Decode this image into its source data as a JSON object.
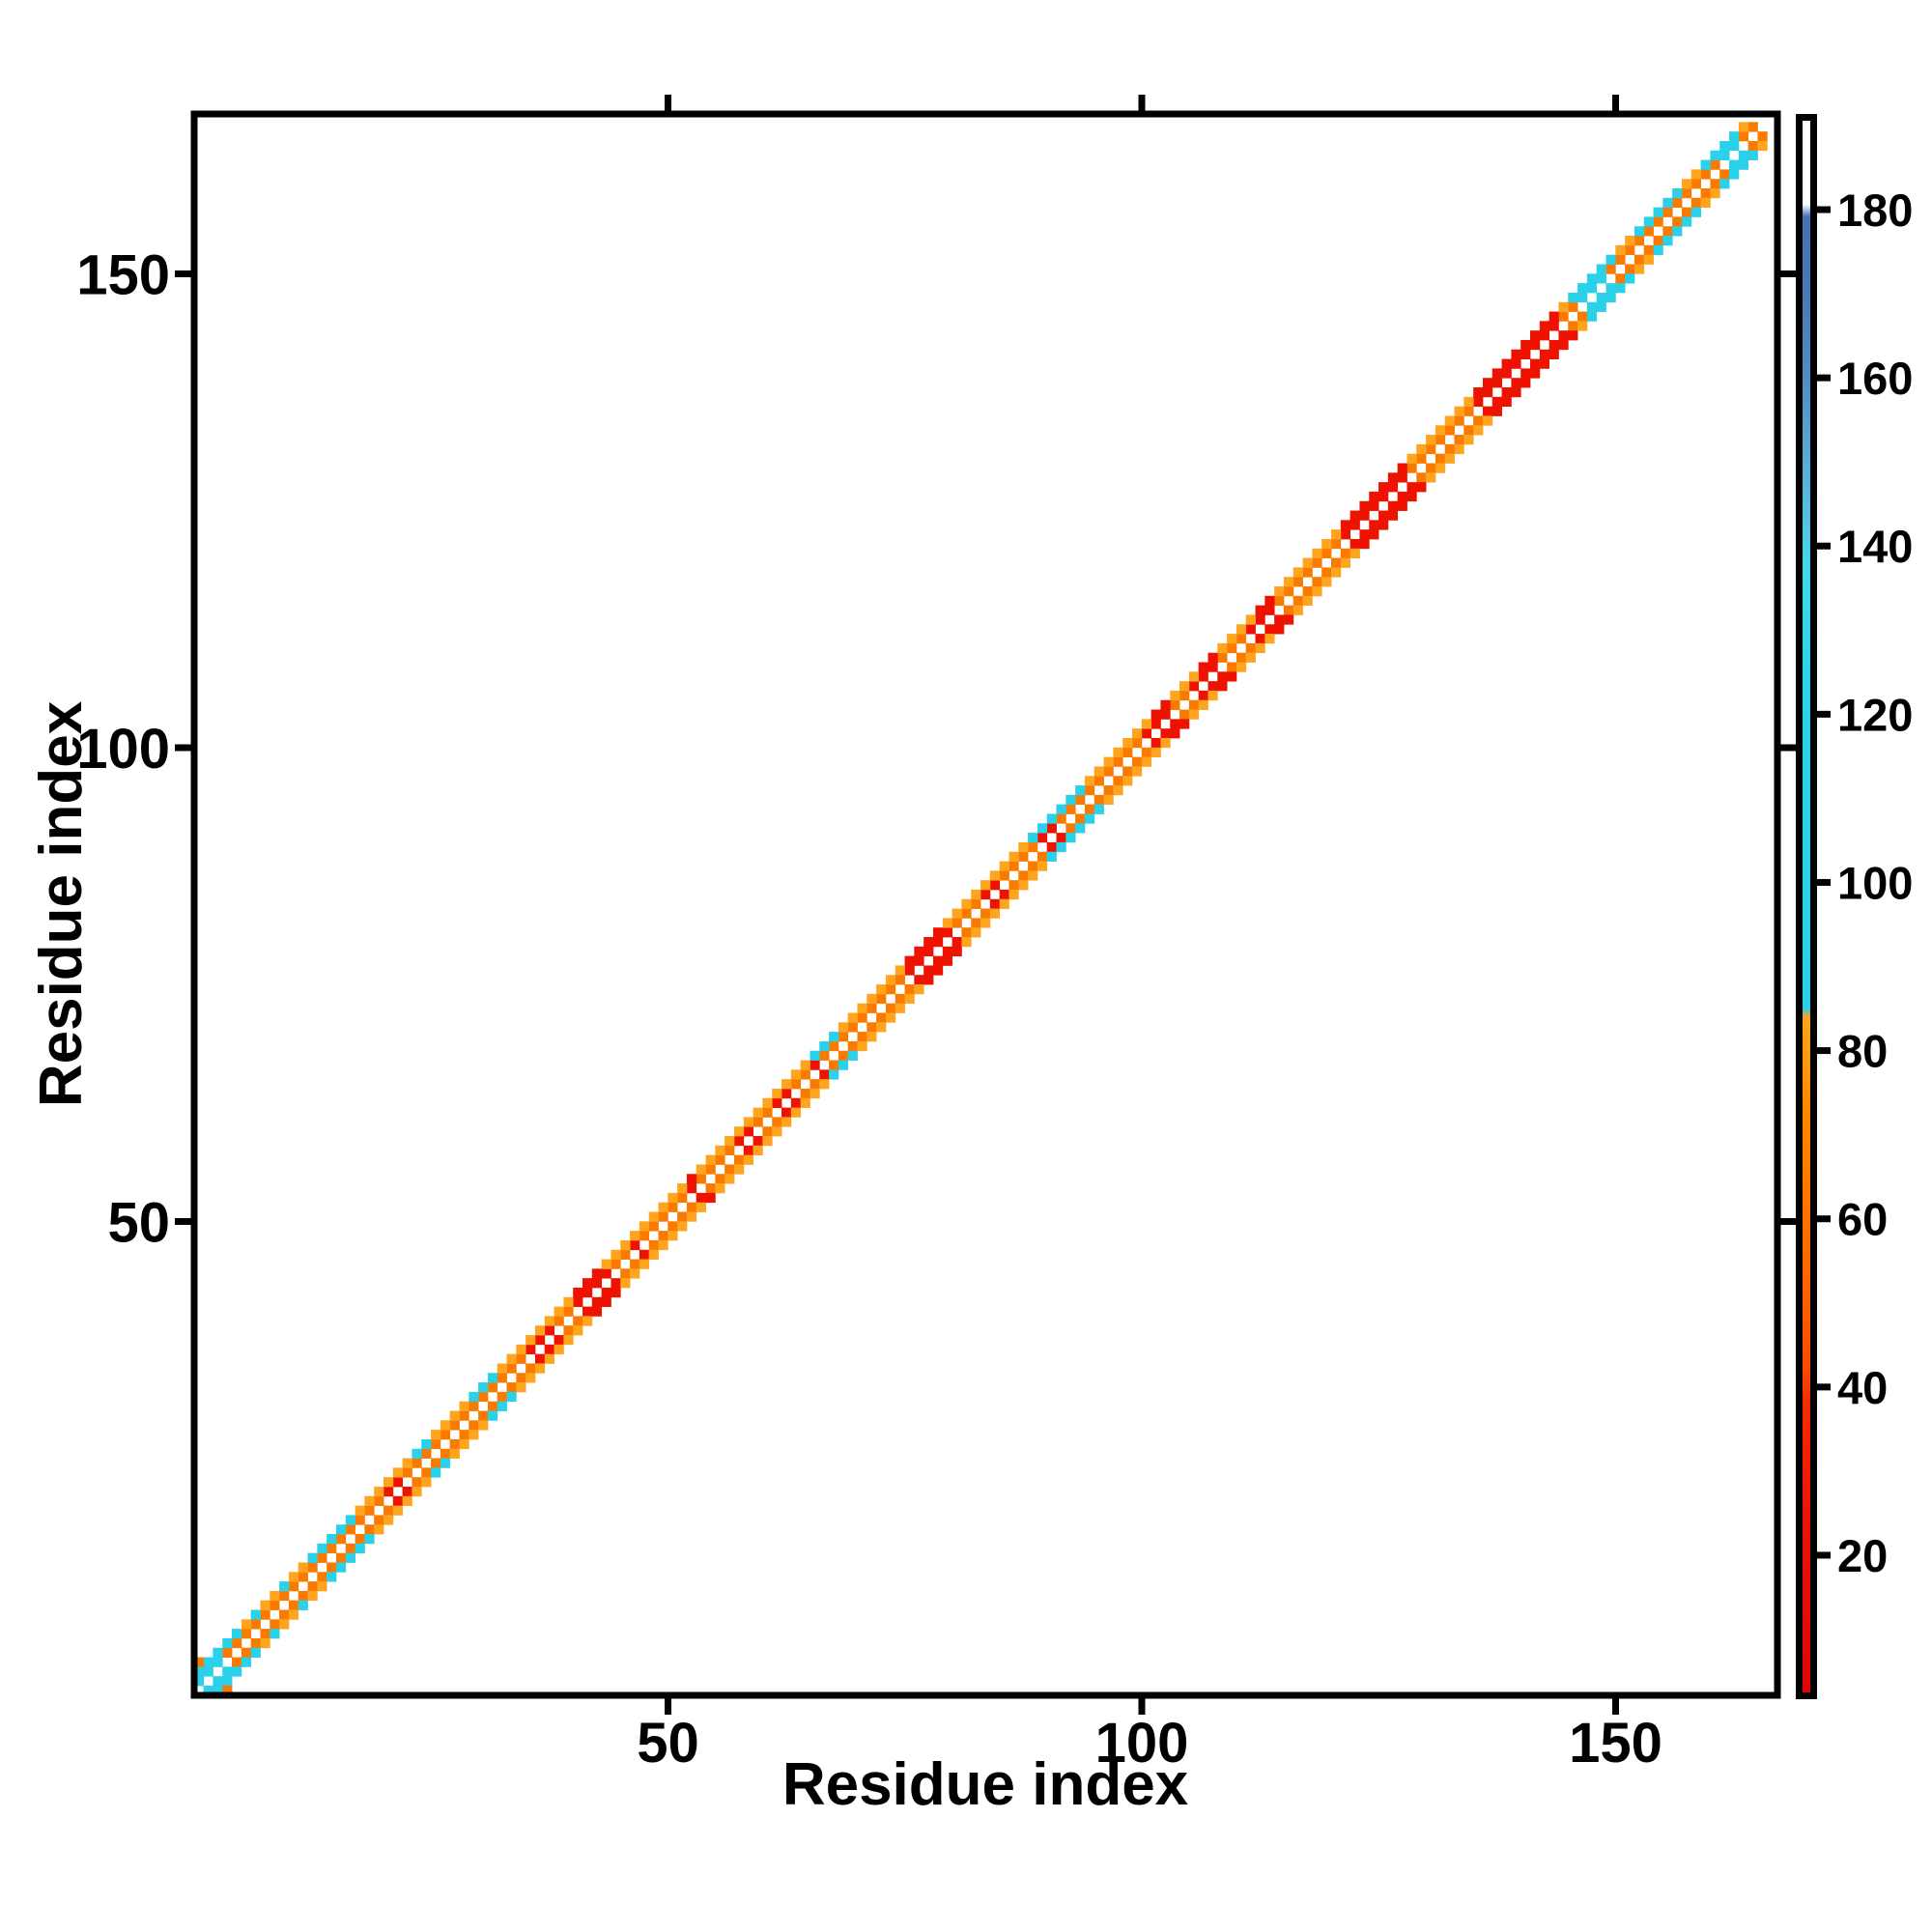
{
  "chart_data": {
    "type": "heatmap",
    "title": "",
    "xlabel": "Residue index",
    "ylabel": "Residue index",
    "x_ticks": [
      50,
      100,
      150
    ],
    "y_ticks": [
      50,
      100,
      150
    ],
    "x_tick_labels": [
      "50",
      "100",
      "150"
    ],
    "y_tick_labels": [
      "50",
      "100",
      "150"
    ],
    "axis_range": [
      0,
      167
    ],
    "n_residues": 166,
    "grid": false,
    "legend_position": "none",
    "background_color": "#ffffff",
    "description": "Protein contact map: colored cells only at sequence offsets 1 and 2 from the main diagonal (symmetric), main diagonal itself is white.",
    "palette": {
      "R": "#ee1300",
      "O": "#fa7a00",
      "A": "#ffa41e",
      "C": "#2bd1e8"
    },
    "palette_value_ranges": {
      "R": "approx 10-40 on colorbar",
      "O": "approx 45-80 on colorbar",
      "A": "approx 70-85 on colorbar",
      "C": "approx 90-140 on colorbar"
    },
    "band_offset1": [
      [
        1,
        3,
        "C"
      ],
      [
        4,
        20,
        "O"
      ],
      [
        21,
        22,
        "R"
      ],
      [
        23,
        35,
        "O"
      ],
      [
        36,
        38,
        "R"
      ],
      [
        39,
        40,
        "O"
      ],
      [
        41,
        44,
        "R"
      ],
      [
        45,
        46,
        "O"
      ],
      [
        47,
        47,
        "R"
      ],
      [
        48,
        52,
        "O"
      ],
      [
        53,
        53,
        "R"
      ],
      [
        54,
        57,
        "O"
      ],
      [
        58,
        59,
        "R"
      ],
      [
        60,
        61,
        "O"
      ],
      [
        62,
        63,
        "R"
      ],
      [
        64,
        65,
        "O"
      ],
      [
        66,
        66,
        "R"
      ],
      [
        67,
        75,
        "O"
      ],
      [
        76,
        80,
        "R"
      ],
      [
        81,
        83,
        "O"
      ],
      [
        84,
        85,
        "R"
      ],
      [
        86,
        89,
        "O"
      ],
      [
        90,
        91,
        "R"
      ],
      [
        92,
        100,
        "O"
      ],
      [
        101,
        103,
        "R"
      ],
      [
        104,
        105,
        "O"
      ],
      [
        106,
        108,
        "R"
      ],
      [
        109,
        111,
        "O"
      ],
      [
        112,
        114,
        "R"
      ],
      [
        115,
        121,
        "O"
      ],
      [
        122,
        128,
        "R"
      ],
      [
        129,
        135,
        "O"
      ],
      [
        136,
        144,
        "R"
      ],
      [
        145,
        146,
        "O"
      ],
      [
        147,
        149,
        "C"
      ],
      [
        150,
        161,
        "O"
      ],
      [
        162,
        163,
        "C"
      ],
      [
        164,
        165,
        "O"
      ]
    ],
    "band_offset2": [
      [
        1,
        5,
        "C"
      ],
      [
        6,
        6,
        "A"
      ],
      [
        7,
        7,
        "C"
      ],
      [
        8,
        9,
        "A"
      ],
      [
        10,
        10,
        "C"
      ],
      [
        11,
        12,
        "A"
      ],
      [
        13,
        17,
        "C"
      ],
      [
        18,
        23,
        "A"
      ],
      [
        24,
        25,
        "C"
      ],
      [
        26,
        29,
        "A"
      ],
      [
        30,
        32,
        "C"
      ],
      [
        33,
        40,
        "A"
      ],
      [
        41,
        43,
        "R"
      ],
      [
        44,
        52,
        "A"
      ],
      [
        53,
        53,
        "R"
      ],
      [
        54,
        65,
        "A"
      ],
      [
        66,
        68,
        "C"
      ],
      [
        69,
        75,
        "A"
      ],
      [
        76,
        79,
        "R"
      ],
      [
        80,
        88,
        "A"
      ],
      [
        89,
        94,
        "C"
      ],
      [
        95,
        101,
        "A"
      ],
      [
        102,
        103,
        "R"
      ],
      [
        104,
        106,
        "A"
      ],
      [
        107,
        108,
        "R"
      ],
      [
        109,
        112,
        "A"
      ],
      [
        113,
        114,
        "R"
      ],
      [
        115,
        121,
        "A"
      ],
      [
        122,
        128,
        "R"
      ],
      [
        129,
        135,
        "A"
      ],
      [
        136,
        144,
        "R"
      ],
      [
        145,
        145,
        "A"
      ],
      [
        146,
        150,
        "C"
      ],
      [
        151,
        152,
        "A"
      ],
      [
        153,
        157,
        "C"
      ],
      [
        158,
        159,
        "A"
      ],
      [
        160,
        163,
        "C"
      ],
      [
        164,
        164,
        "A"
      ]
    ],
    "extra_cells": [
      [
        1,
        4,
        "O"
      ]
    ],
    "colorbar": {
      "ticks": [
        20,
        40,
        60,
        80,
        100,
        120,
        140,
        160,
        180
      ],
      "tick_labels": [
        "20",
        "40",
        "60",
        "80",
        "100",
        "120",
        "140",
        "160",
        "180"
      ],
      "vmin": 3,
      "vmax": 191.5,
      "gradient_stops": [
        {
          "v": 3,
          "color": "#e00500"
        },
        {
          "v": 25,
          "color": "#ee1500"
        },
        {
          "v": 38,
          "color": "#f52d00"
        },
        {
          "v": 42,
          "color": "#f94b00"
        },
        {
          "v": 50,
          "color": "#fb6000"
        },
        {
          "v": 60,
          "color": "#fc7200"
        },
        {
          "v": 72,
          "color": "#fe8800"
        },
        {
          "v": 84,
          "color": "#ffa51e"
        },
        {
          "v": 85,
          "color": "#2bcfe6"
        },
        {
          "v": 125,
          "color": "#2ed3e9"
        },
        {
          "v": 138,
          "color": "#44d7ec"
        },
        {
          "v": 143,
          "color": "#55c3e2"
        },
        {
          "v": 152,
          "color": "#57a8d4"
        },
        {
          "v": 162,
          "color": "#4f8ac2"
        },
        {
          "v": 172,
          "color": "#4878b6"
        },
        {
          "v": 180,
          "color": "#4573b2"
        },
        {
          "v": 181.5,
          "color": "#ffffff"
        },
        {
          "v": 191.5,
          "color": "#ffffff"
        }
      ]
    }
  }
}
